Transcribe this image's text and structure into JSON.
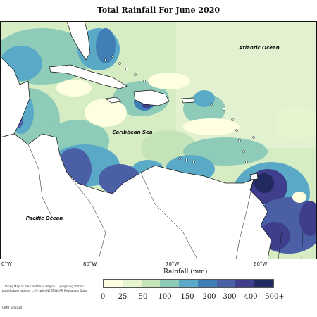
{
  "title": "Total Rainfall For June 2020",
  "labels": {
    "atlantic": "Atlantic Ocean",
    "caribbean": "Caribbean Sea",
    "pacific": "Pacific Ocean"
  },
  "longitude_ticks": [
    "0°W",
    "80°W",
    "70°W",
    "60°W"
  ],
  "colorbar": {
    "title": "Rainfall (mm)",
    "labels": [
      "0",
      "25",
      "50",
      "100",
      "150",
      "200",
      "300",
      "400",
      "500+"
    ],
    "colors": [
      "#fefee0",
      "#e6f4cf",
      "#c4e3b8",
      "#8ecbb8",
      "#5aa9c6",
      "#3f7fb5",
      "#4a5fa6",
      "#3f3e8c",
      "#202a5e"
    ]
  },
  "credit": {
    "text": "...toring Map of the Caribbean Region. ...gregating station based observations, ...OF, with NCEP/NCAR Reanalysis Data",
    "code": "CIMH Jun2020"
  }
}
